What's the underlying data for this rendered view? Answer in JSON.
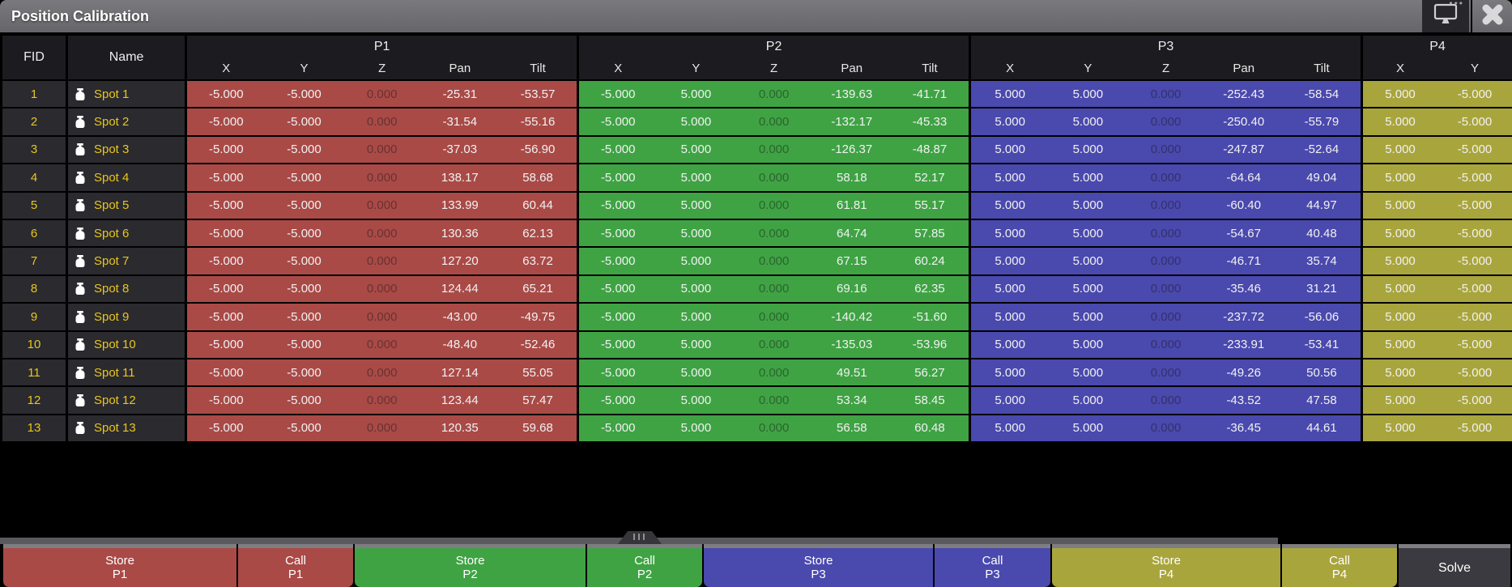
{
  "window": {
    "title": "Position Calibration"
  },
  "titlebar": {
    "icons": {
      "monitor": "monitor-icon",
      "close": "close-icon",
      "more": "more-dots-icon"
    }
  },
  "colors": {
    "p1": "#A94A47",
    "p2": "#3FA344",
    "p3": "#4A49AE",
    "p4": "#A9A53D",
    "row_bg": "#2A2A2F",
    "header_bg": "#1C1C20",
    "fid_text": "#E9C61C",
    "titlebar_bg": "#6F6F73",
    "solve_bg": "#3A3A40"
  },
  "table": {
    "fid_header": "FID",
    "name_header": "Name",
    "groups": [
      {
        "label": "P1",
        "cols": [
          "X",
          "Y",
          "Z",
          "Pan",
          "Tilt"
        ]
      },
      {
        "label": "P2",
        "cols": [
          "X",
          "Y",
          "Z",
          "Pan",
          "Tilt"
        ]
      },
      {
        "label": "P3",
        "cols": [
          "X",
          "Y",
          "Z",
          "Pan",
          "Tilt"
        ]
      },
      {
        "label": "P4",
        "cols": [
          "X",
          "Y"
        ]
      }
    ],
    "rows": [
      {
        "fid": "1",
        "name": "Spot 1",
        "p1": [
          "-5.000",
          "-5.000",
          "0.000",
          "-25.31",
          "-53.57"
        ],
        "p2": [
          "-5.000",
          "5.000",
          "0.000",
          "-139.63",
          "-41.71"
        ],
        "p3": [
          "5.000",
          "5.000",
          "0.000",
          "-252.43",
          "-58.54"
        ],
        "p4": [
          "5.000",
          "-5.000"
        ]
      },
      {
        "fid": "2",
        "name": "Spot 2",
        "p1": [
          "-5.000",
          "-5.000",
          "0.000",
          "-31.54",
          "-55.16"
        ],
        "p2": [
          "-5.000",
          "5.000",
          "0.000",
          "-132.17",
          "-45.33"
        ],
        "p3": [
          "5.000",
          "5.000",
          "0.000",
          "-250.40",
          "-55.79"
        ],
        "p4": [
          "5.000",
          "-5.000"
        ]
      },
      {
        "fid": "3",
        "name": "Spot 3",
        "p1": [
          "-5.000",
          "-5.000",
          "0.000",
          "-37.03",
          "-56.90"
        ],
        "p2": [
          "-5.000",
          "5.000",
          "0.000",
          "-126.37",
          "-48.87"
        ],
        "p3": [
          "5.000",
          "5.000",
          "0.000",
          "-247.87",
          "-52.64"
        ],
        "p4": [
          "5.000",
          "-5.000"
        ]
      },
      {
        "fid": "4",
        "name": "Spot 4",
        "p1": [
          "-5.000",
          "-5.000",
          "0.000",
          "138.17",
          "58.68"
        ],
        "p2": [
          "-5.000",
          "5.000",
          "0.000",
          "58.18",
          "52.17"
        ],
        "p3": [
          "5.000",
          "5.000",
          "0.000",
          "-64.64",
          "49.04"
        ],
        "p4": [
          "5.000",
          "-5.000"
        ]
      },
      {
        "fid": "5",
        "name": "Spot 5",
        "p1": [
          "-5.000",
          "-5.000",
          "0.000",
          "133.99",
          "60.44"
        ],
        "p2": [
          "-5.000",
          "5.000",
          "0.000",
          "61.81",
          "55.17"
        ],
        "p3": [
          "5.000",
          "5.000",
          "0.000",
          "-60.40",
          "44.97"
        ],
        "p4": [
          "5.000",
          "-5.000"
        ]
      },
      {
        "fid": "6",
        "name": "Spot 6",
        "p1": [
          "-5.000",
          "-5.000",
          "0.000",
          "130.36",
          "62.13"
        ],
        "p2": [
          "-5.000",
          "5.000",
          "0.000",
          "64.74",
          "57.85"
        ],
        "p3": [
          "5.000",
          "5.000",
          "0.000",
          "-54.67",
          "40.48"
        ],
        "p4": [
          "5.000",
          "-5.000"
        ]
      },
      {
        "fid": "7",
        "name": "Spot 7",
        "p1": [
          "-5.000",
          "-5.000",
          "0.000",
          "127.20",
          "63.72"
        ],
        "p2": [
          "-5.000",
          "5.000",
          "0.000",
          "67.15",
          "60.24"
        ],
        "p3": [
          "5.000",
          "5.000",
          "0.000",
          "-46.71",
          "35.74"
        ],
        "p4": [
          "5.000",
          "-5.000"
        ]
      },
      {
        "fid": "8",
        "name": "Spot 8",
        "p1": [
          "-5.000",
          "-5.000",
          "0.000",
          "124.44",
          "65.21"
        ],
        "p2": [
          "-5.000",
          "5.000",
          "0.000",
          "69.16",
          "62.35"
        ],
        "p3": [
          "5.000",
          "5.000",
          "0.000",
          "-35.46",
          "31.21"
        ],
        "p4": [
          "5.000",
          "-5.000"
        ]
      },
      {
        "fid": "9",
        "name": "Spot 9",
        "p1": [
          "-5.000",
          "-5.000",
          "0.000",
          "-43.00",
          "-49.75"
        ],
        "p2": [
          "-5.000",
          "5.000",
          "0.000",
          "-140.42",
          "-51.60"
        ],
        "p3": [
          "5.000",
          "5.000",
          "0.000",
          "-237.72",
          "-56.06"
        ],
        "p4": [
          "5.000",
          "-5.000"
        ]
      },
      {
        "fid": "10",
        "name": "Spot 10",
        "p1": [
          "-5.000",
          "-5.000",
          "0.000",
          "-48.40",
          "-52.46"
        ],
        "p2": [
          "-5.000",
          "5.000",
          "0.000",
          "-135.03",
          "-53.96"
        ],
        "p3": [
          "5.000",
          "5.000",
          "0.000",
          "-233.91",
          "-53.41"
        ],
        "p4": [
          "5.000",
          "-5.000"
        ]
      },
      {
        "fid": "11",
        "name": "Spot 11",
        "p1": [
          "-5.000",
          "-5.000",
          "0.000",
          "127.14",
          "55.05"
        ],
        "p2": [
          "-5.000",
          "5.000",
          "0.000",
          "49.51",
          "56.27"
        ],
        "p3": [
          "5.000",
          "5.000",
          "0.000",
          "-49.26",
          "50.56"
        ],
        "p4": [
          "5.000",
          "-5.000"
        ]
      },
      {
        "fid": "12",
        "name": "Spot 12",
        "p1": [
          "-5.000",
          "-5.000",
          "0.000",
          "123.44",
          "57.47"
        ],
        "p2": [
          "-5.000",
          "5.000",
          "0.000",
          "53.34",
          "58.45"
        ],
        "p3": [
          "5.000",
          "5.000",
          "0.000",
          "-43.52",
          "47.58"
        ],
        "p4": [
          "5.000",
          "-5.000"
        ]
      },
      {
        "fid": "13",
        "name": "Spot 13",
        "p1": [
          "-5.000",
          "-5.000",
          "0.000",
          "120.35",
          "59.68"
        ],
        "p2": [
          "-5.000",
          "5.000",
          "0.000",
          "56.58",
          "60.48"
        ],
        "p3": [
          "5.000",
          "5.000",
          "0.000",
          "-36.45",
          "44.61"
        ],
        "p4": [
          "5.000",
          "-5.000"
        ]
      }
    ]
  },
  "buttons": [
    {
      "line1": "Store",
      "line2": "P1",
      "color": "p1"
    },
    {
      "line1": "Call",
      "line2": "P1",
      "color": "p1"
    },
    {
      "line1": "Store",
      "line2": "P2",
      "color": "p2"
    },
    {
      "line1": "Call",
      "line2": "P2",
      "color": "p2"
    },
    {
      "line1": "Store",
      "line2": "P3",
      "color": "p3"
    },
    {
      "line1": "Call",
      "line2": "P3",
      "color": "p3"
    },
    {
      "line1": "Store",
      "line2": "P4",
      "color": "p4"
    },
    {
      "line1": "Call",
      "line2": "P4",
      "color": "p4"
    },
    {
      "line1": "Solve",
      "color": "solve"
    }
  ]
}
